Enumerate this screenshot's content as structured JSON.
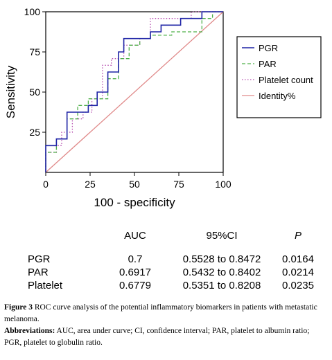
{
  "chart_data": {
    "type": "line",
    "title": "",
    "xlabel": "100 - specificity",
    "ylabel": "Sensitivity",
    "xlim": [
      0,
      100
    ],
    "ylim": [
      0,
      100
    ],
    "x_ticks": [
      "0",
      "25",
      "50",
      "75",
      "100"
    ],
    "y_ticks": [
      "25",
      "50",
      "75",
      "100"
    ],
    "grid": false,
    "legend_placement": "right, outside plot",
    "series": [
      {
        "name": "PGR",
        "color": "#1f24a6",
        "style": "solid",
        "points": [
          [
            0,
            0
          ],
          [
            0,
            16.7
          ],
          [
            6,
            16.7
          ],
          [
            6,
            20.8
          ],
          [
            12,
            20.8
          ],
          [
            12,
            37.5
          ],
          [
            24,
            37.5
          ],
          [
            24,
            41.7
          ],
          [
            29,
            41.7
          ],
          [
            29,
            50
          ],
          [
            35,
            50
          ],
          [
            35,
            62.5
          ],
          [
            41,
            62.5
          ],
          [
            41,
            75
          ],
          [
            44,
            75
          ],
          [
            44,
            83.3
          ],
          [
            59,
            83.3
          ],
          [
            59,
            87.5
          ],
          [
            65,
            87.5
          ],
          [
            65,
            91.7
          ],
          [
            76,
            91.7
          ],
          [
            76,
            95.8
          ],
          [
            88,
            95.8
          ],
          [
            88,
            100
          ],
          [
            100,
            100
          ]
        ]
      },
      {
        "name": "PAR",
        "color": "#4fb049",
        "style": "dashed",
        "points": [
          [
            0,
            0
          ],
          [
            0,
            12.5
          ],
          [
            6,
            12.5
          ],
          [
            6,
            20.8
          ],
          [
            12,
            20.8
          ],
          [
            12,
            33.3
          ],
          [
            18,
            33.3
          ],
          [
            18,
            41.7
          ],
          [
            24,
            41.7
          ],
          [
            24,
            45.8
          ],
          [
            35,
            45.8
          ],
          [
            35,
            58.3
          ],
          [
            41,
            58.3
          ],
          [
            41,
            70.8
          ],
          [
            47,
            70.8
          ],
          [
            47,
            79.2
          ],
          [
            53,
            79.2
          ],
          [
            53,
            83.3
          ],
          [
            59,
            83.3
          ],
          [
            59,
            85.4
          ],
          [
            71,
            85.4
          ],
          [
            71,
            87.5
          ],
          [
            88,
            87.5
          ],
          [
            88,
            95.8
          ],
          [
            94,
            95.8
          ],
          [
            94,
            100
          ],
          [
            100,
            100
          ]
        ]
      },
      {
        "name": "Platelet count",
        "color": "#b64fb0",
        "style": "dotted",
        "points": [
          [
            0,
            0
          ],
          [
            0,
            12.5
          ],
          [
            6,
            12.5
          ],
          [
            6,
            16.7
          ],
          [
            9,
            16.7
          ],
          [
            9,
            25
          ],
          [
            15,
            25
          ],
          [
            15,
            33.3
          ],
          [
            21,
            33.3
          ],
          [
            21,
            37.5
          ],
          [
            26,
            37.5
          ],
          [
            26,
            45.8
          ],
          [
            32,
            45.8
          ],
          [
            32,
            66.7
          ],
          [
            37,
            66.7
          ],
          [
            37,
            70.8
          ],
          [
            44,
            70.8
          ],
          [
            44,
            79.2
          ],
          [
            53,
            79.2
          ],
          [
            53,
            83.3
          ],
          [
            59,
            83.3
          ],
          [
            59,
            95.8
          ],
          [
            82,
            95.8
          ],
          [
            82,
            100
          ],
          [
            100,
            100
          ]
        ]
      },
      {
        "name": "Identity%",
        "color": "#e08a8a",
        "style": "solid",
        "points": [
          [
            0,
            0
          ],
          [
            100,
            100
          ]
        ]
      }
    ]
  },
  "table": {
    "headers": [
      "",
      "AUC",
      "95%CI",
      "P"
    ],
    "rows": [
      [
        "PGR",
        "0.7",
        "0.5528 to 0.8472",
        "0.0164"
      ],
      [
        "PAR",
        "0.6917",
        "0.5432 to 0.8402",
        "0.0214"
      ],
      [
        "Platelet",
        "0.6779",
        "0.5351 to 0.8208",
        "0.0235"
      ]
    ]
  },
  "caption": {
    "figure_label": "Figure 3",
    "figure_text": "ROC curve analysis of the potential inflammatory biomarkers in patients with metastatic melanoma.",
    "abbrev_label": "Abbreviations:",
    "abbrev_text": "AUC, area under curve; CI, confidence interval; PAR, platelet to albumin ratio; PGR, platelet to globulin ratio."
  }
}
